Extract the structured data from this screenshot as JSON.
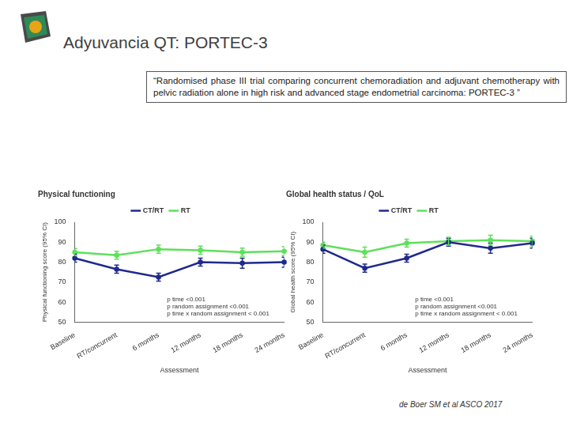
{
  "header": {
    "title": "Adyuvancia QT: PORTEC-3"
  },
  "quote": "“Randomised phase III trial comparing concurrent chemoradiation and adjuvant chemotherapy with pelvic radiation alone in high risk and advanced stage endometrial carcinoma: PORTEC-3 ”",
  "chart_data": [
    {
      "type": "line",
      "title": "Physical functioning",
      "x_label": "Assessment",
      "y_label": "Physical functioning score (95% CI)",
      "categories": [
        "Baseline",
        "RT/concurrent",
        "6 months",
        "12 months",
        "18 months",
        "24 months"
      ],
      "series": [
        {
          "name": "CT/RT",
          "color": "#1f2a8a",
          "values": [
            82,
            76.5,
            72.5,
            80,
            79.5,
            80
          ],
          "error": [
            2,
            2,
            2,
            2,
            2.5,
            2.5
          ]
        },
        {
          "name": "RT",
          "color": "#5ee05a",
          "values": [
            85,
            83.5,
            86.5,
            86,
            85,
            85.5
          ],
          "error": [
            1.8,
            2,
            2,
            2,
            2,
            2.2
          ]
        }
      ],
      "ylim": [
        50,
        100
      ],
      "yticks": [
        50,
        60,
        70,
        80,
        90,
        100
      ],
      "grid": false,
      "legend": "top",
      "annotations": [
        "p time <0.001",
        "p random assignment <0.001",
        "p time x random assignment < 0.001"
      ]
    },
    {
      "type": "line",
      "title": "Global health status / QoL",
      "x_label": "Assessment",
      "y_label": "Global health score (95% CI)",
      "categories": [
        "Baseline",
        "RT/concurrent",
        "6 months",
        "12 months",
        "18 months",
        "24 months"
      ],
      "series": [
        {
          "name": "CT/RT",
          "color": "#1f2a8a",
          "values": [
            86.5,
            77,
            82,
            90,
            87,
            89.5
          ],
          "error": [
            2,
            2,
            2,
            2,
            2.5,
            2.5
          ]
        },
        {
          "name": "RT",
          "color": "#5ee05a",
          "values": [
            88.5,
            85,
            89.5,
            90.5,
            91,
            90.5
          ],
          "error": [
            1.5,
            2.5,
            2,
            2,
            2.5,
            2.5
          ]
        }
      ],
      "ylim": [
        50,
        100
      ],
      "yticks": [
        50,
        60,
        70,
        80,
        90,
        100
      ],
      "grid": false,
      "legend": "top",
      "annotations": [
        "p time <0.001",
        "p random assignment <0.001",
        "p time x random assignment < 0.001"
      ]
    }
  ],
  "citation": "de Boer SM et al ASCO 2017"
}
